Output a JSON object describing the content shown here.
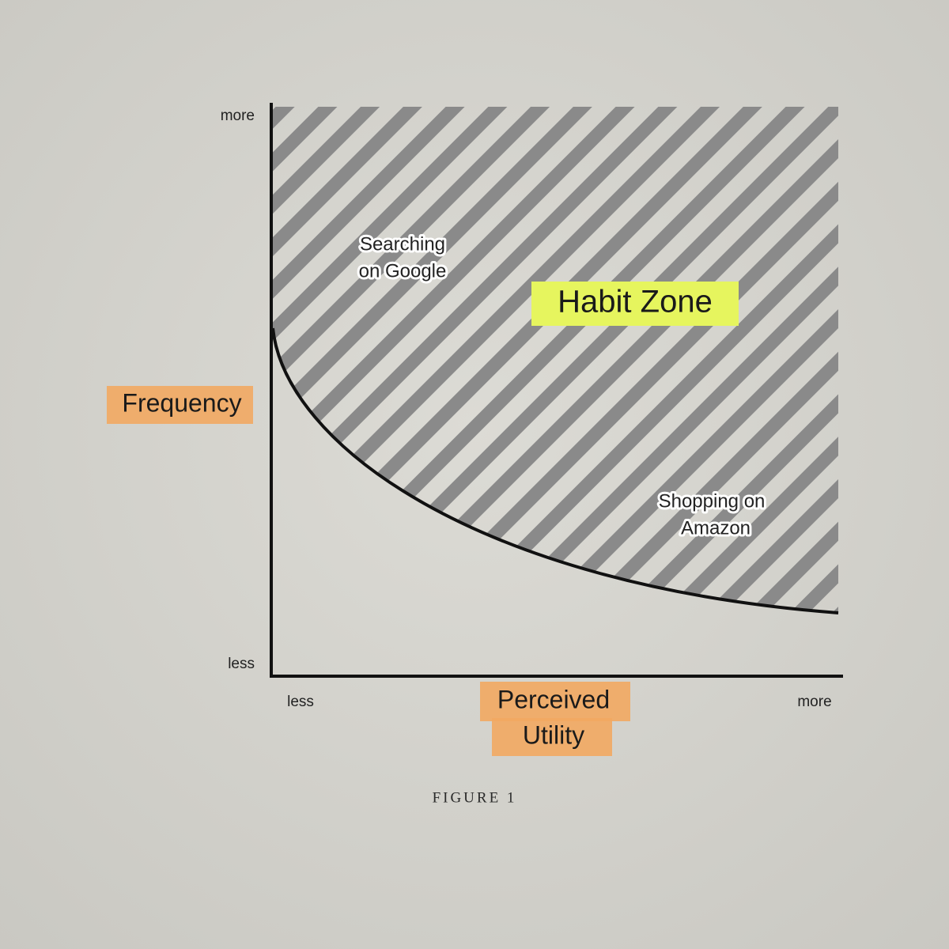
{
  "figure": {
    "y_axis": {
      "label": "Frequency",
      "high": "more",
      "low": "less"
    },
    "x_axis": {
      "label_lines": [
        "Perceived",
        "Utility"
      ],
      "low": "less",
      "high": "more"
    },
    "zone": {
      "label": "Habit Zone"
    },
    "annotations": [
      {
        "lines": [
          "Searching",
          "on Google"
        ]
      },
      {
        "lines": [
          "Shopping on",
          "Amazon"
        ]
      }
    ],
    "caption": "FIGURE 1"
  }
}
